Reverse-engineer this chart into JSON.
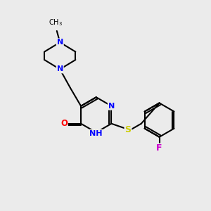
{
  "bg_color": "#ebebeb",
  "bond_color": "#000000",
  "bond_width": 1.5,
  "atom_colors": {
    "N": "#0000ff",
    "O": "#ff0000",
    "S": "#cccc00",
    "F": "#cc00cc",
    "C": "#000000",
    "H": "#555555"
  },
  "font_size": 8.0,
  "fig_size": [
    3.0,
    3.0
  ],
  "dpi": 100
}
